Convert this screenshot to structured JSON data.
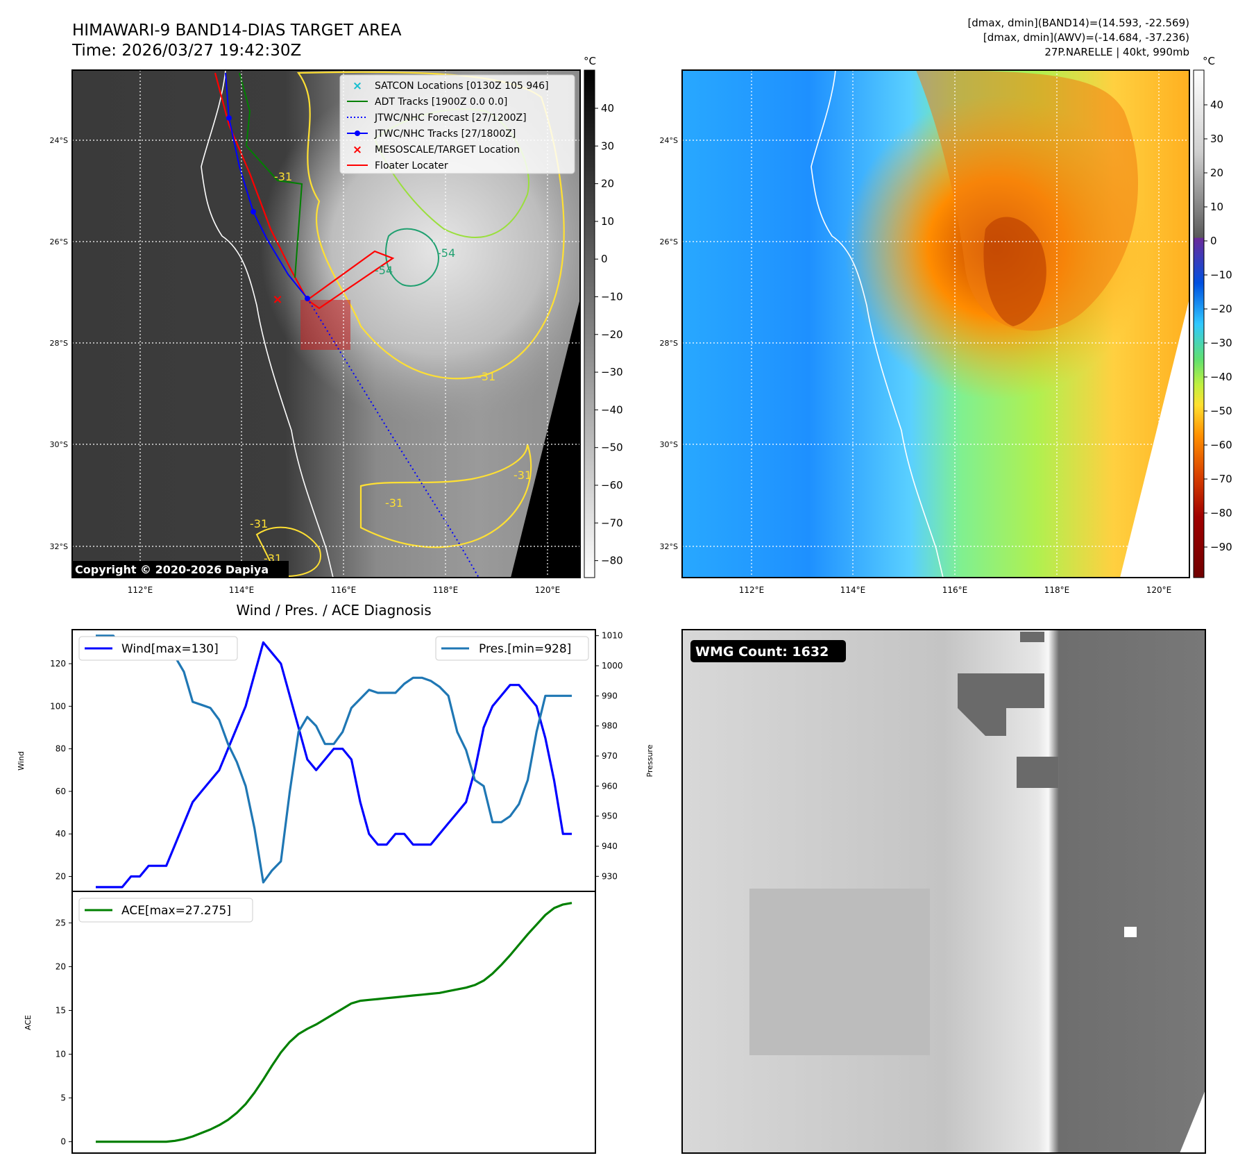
{
  "header": {
    "title": "HIMAWARI-9 BAND14-DIAS TARGET AREA",
    "time": "Time: 2026/03/27 19:42:30Z",
    "stats_band14": "[dmax, dmin](BAND14)=(14.593, -22.569)",
    "stats_awv": "[dmax, dmin](AWV)=(-14.684, -37.236)",
    "storm_info": "27P.NARELLE | 40kt, 990mb"
  },
  "map": {
    "lon_ticks": [
      "112°E",
      "114°E",
      "116°E",
      "118°E",
      "120°E"
    ],
    "lat_ticks": [
      "24°S",
      "26°S",
      "28°S",
      "30°S",
      "32°S"
    ],
    "copyright": "Copyright © 2020-2026 Dapiya",
    "contour_labels": [
      "-31",
      "-31",
      "-31",
      "-31",
      "-31",
      "-31",
      "-54",
      "-54"
    ],
    "legend": [
      {
        "label": "SATCON Locations [0130Z 105 946]",
        "color": "#17becf",
        "marker": "x"
      },
      {
        "label": "ADT Tracks [1900Z 0.0 0.0]",
        "color": "#008000",
        "marker": "line"
      },
      {
        "label": "JTWC/NHC Forecast [27/1200Z]",
        "color": "#0000ff",
        "marker": "dotted"
      },
      {
        "label": "JTWC/NHC Tracks [27/1800Z]",
        "color": "#0000ff",
        "marker": "line-dot"
      },
      {
        "label": "MESOSCALE/TARGET Location",
        "color": "#ff0000",
        "marker": "x"
      },
      {
        "label": "Floater Locater",
        "color": "#ff0000",
        "marker": "line"
      }
    ],
    "colorbar_unit": "°C",
    "gray_colorbar_ticks": [
      "40",
      "30",
      "20",
      "10",
      "0",
      "−10",
      "−20",
      "−30",
      "−40",
      "−50",
      "−60",
      "−70",
      "−80"
    ],
    "color_colorbar_ticks": [
      "40",
      "30",
      "20",
      "10",
      "0",
      "−10",
      "−20",
      "−30",
      "−40",
      "−50",
      "−60",
      "−70",
      "−80",
      "−90"
    ]
  },
  "diagnosis": {
    "title": "Wind / Pres. / ACE Diagnosis",
    "wind_legend": "Wind[max=130]",
    "pres_legend": "Pres.[min=928]",
    "ace_legend": "ACE[max=27.275]",
    "wind_ylabel": "Wind",
    "pres_ylabel": "Pressure",
    "ace_ylabel": "ACE"
  },
  "wmg": {
    "label": "WMG Count: 1632"
  },
  "chart_data": [
    {
      "type": "line",
      "title": "Wind / Pres. / ACE Diagnosis",
      "x": [
        0,
        1,
        2,
        3,
        4,
        5,
        6,
        7,
        8,
        9,
        10,
        11,
        12,
        13,
        14,
        15,
        16,
        17,
        18,
        19,
        20,
        21,
        22,
        23,
        24,
        25,
        26,
        27,
        28,
        29,
        30,
        31,
        32,
        33,
        34,
        35,
        36,
        37,
        38,
        39,
        40,
        41,
        42,
        43,
        44,
        45,
        46,
        47,
        48,
        49,
        50,
        51,
        52,
        53,
        54
      ],
      "series": [
        {
          "name": "Wind[max=130]",
          "color": "#0000ff",
          "axis": "left",
          "values": [
            15,
            15,
            15,
            15,
            20,
            20,
            25,
            25,
            25,
            35,
            45,
            55,
            60,
            65,
            70,
            80,
            90,
            100,
            115,
            130,
            125,
            120,
            105,
            90,
            75,
            70,
            75,
            80,
            80,
            75,
            55,
            40,
            35,
            35,
            40,
            40,
            35,
            35,
            35,
            40,
            45,
            50,
            55,
            70,
            90,
            100,
            105,
            110,
            110,
            105,
            100,
            85,
            65,
            40,
            40
          ]
        },
        {
          "name": "Pres.[min=928]",
          "color": "#1f77b4",
          "axis": "right",
          "values": [
            1010,
            1010,
            1010,
            1005,
            1006,
            1005,
            1003,
            1003,
            1003,
            1003,
            998,
            988,
            987,
            986,
            982,
            974,
            968,
            960,
            946,
            928,
            932,
            935,
            958,
            978,
            983,
            980,
            974,
            974,
            978,
            986,
            989,
            992,
            991,
            991,
            991,
            994,
            996,
            996,
            995,
            993,
            990,
            978,
            972,
            962,
            960,
            948,
            948,
            950,
            954,
            962,
            978,
            990,
            990,
            990,
            990
          ]
        },
        {
          "name": "ACE[max=27.275]",
          "color": "#008000",
          "axis": "ace",
          "values": [
            0,
            0,
            0,
            0,
            0,
            0,
            0,
            0,
            0,
            0.1,
            0.3,
            0.6,
            1.0,
            1.4,
            1.9,
            2.5,
            3.3,
            4.3,
            5.6,
            7.1,
            8.7,
            10.2,
            11.4,
            12.3,
            12.9,
            13.4,
            14.0,
            14.6,
            15.2,
            15.8,
            16.1,
            16.2,
            16.3,
            16.4,
            16.5,
            16.6,
            16.7,
            16.8,
            16.9,
            17.0,
            17.2,
            17.4,
            17.6,
            17.9,
            18.4,
            19.2,
            20.2,
            21.3,
            22.5,
            23.7,
            24.8,
            25.9,
            26.7,
            27.1,
            27.275
          ]
        }
      ],
      "wind_ylim": [
        13,
        136
      ],
      "wind_yticks": [
        20,
        40,
        60,
        80,
        100,
        120
      ],
      "pres_ylim": [
        925,
        1012
      ],
      "pres_yticks": [
        930,
        940,
        950,
        960,
        970,
        980,
        990,
        1000,
        1010
      ],
      "ace_ylim": [
        -1.3,
        28.6
      ],
      "ace_yticks": [
        0,
        5,
        10,
        15,
        20,
        25
      ],
      "legend_wind": "upper left",
      "legend_pres": "upper right",
      "legend_ace": "upper left"
    }
  ]
}
